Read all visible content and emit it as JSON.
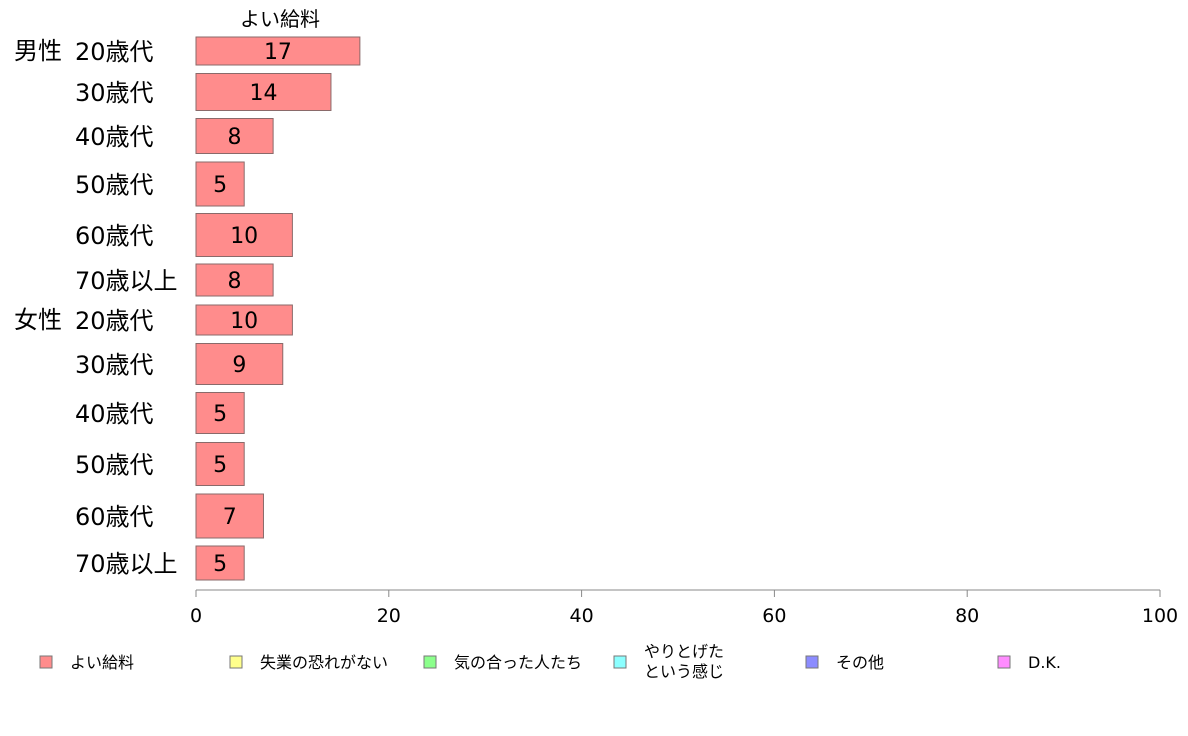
{
  "chart_data": {
    "type": "bar",
    "orientation": "horizontal",
    "column_header": "よい給料",
    "groups": [
      {
        "label": "男性",
        "categories": [
          "20歳代",
          "30歳代",
          "40歳代",
          "50歳代",
          "60歳代",
          "70歳以上"
        ],
        "values": [
          17,
          14,
          8,
          5,
          10,
          8
        ]
      },
      {
        "label": "女性",
        "categories": [
          "20歳代",
          "30歳代",
          "40歳代",
          "50歳代",
          "60歳代",
          "70歳以上"
        ],
        "values": [
          10,
          9,
          5,
          5,
          7,
          5
        ]
      }
    ],
    "xlim": [
      0,
      100
    ],
    "xticks": [
      0,
      20,
      40,
      60,
      80,
      100
    ],
    "grid": false,
    "legend": {
      "position": "bottom",
      "entries": [
        {
          "label": "よい給料",
          "color": "#ff8c8c"
        },
        {
          "label": "失業の恐れがない",
          "color": "#ffff8c"
        },
        {
          "label": "気の合った人たち",
          "color": "#8cff8c"
        },
        {
          "label": "やりとげた\nという感じ",
          "color": "#8cffff"
        },
        {
          "label": "その他",
          "color": "#8c8cff"
        },
        {
          "label": "D.K.",
          "color": "#ff8cff"
        }
      ]
    }
  }
}
